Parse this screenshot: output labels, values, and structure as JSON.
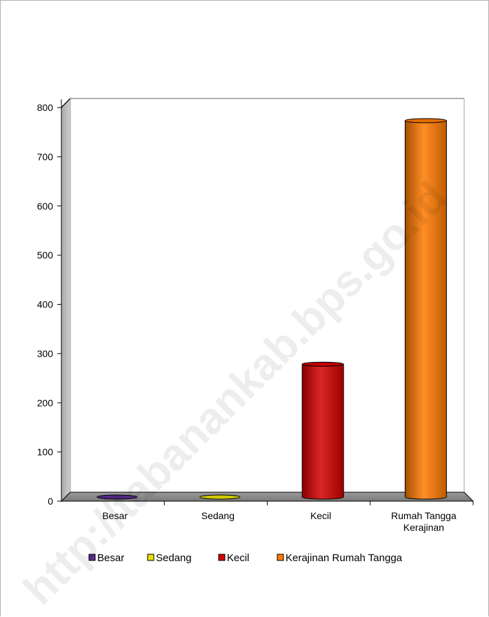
{
  "watermark": "http://tabanankab.bps.go.id",
  "chart_data": {
    "type": "bar",
    "title": "",
    "xlabel": "",
    "ylabel": "",
    "ylim": [
      0,
      800
    ],
    "yticks": [
      0,
      100,
      200,
      300,
      400,
      500,
      600,
      700,
      800
    ],
    "grid": true,
    "legend_position": "bottom",
    "categories": [
      {
        "label": "Besar",
        "lines": [
          "Besar"
        ]
      },
      {
        "label": "Sedang",
        "lines": [
          "Sedang"
        ]
      },
      {
        "label": "Kecil",
        "lines": [
          "Kecil"
        ]
      },
      {
        "label": "Rumah Tangga Kerajinan",
        "lines": [
          "Rumah Tangga",
          "Kerajinan"
        ]
      }
    ],
    "values": [
      0,
      0,
      270,
      765
    ],
    "colors": [
      "#5a2d91",
      "#e8e000",
      "#d40000",
      "#ff7a00"
    ],
    "legend": [
      {
        "label": "Besar",
        "color": "#5a2d91"
      },
      {
        "label": "Sedang",
        "color": "#e8e000"
      },
      {
        "label": "Kecil",
        "color": "#d40000"
      },
      {
        "label": "Kerajinan  Rumah Tangga",
        "color": "#ff7a00"
      }
    ]
  }
}
